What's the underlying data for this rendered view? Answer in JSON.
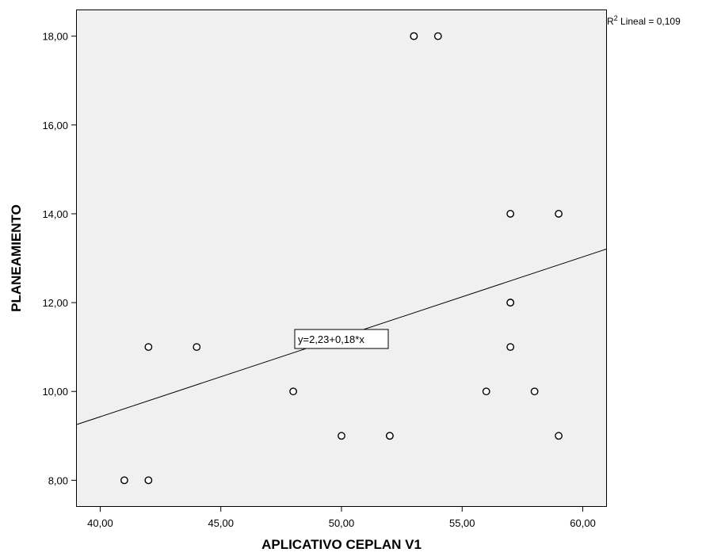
{
  "chart_data": {
    "type": "scatter",
    "xlabel": "APLICATIVO CEPLAN  V1",
    "ylabel": "PLANEAMIENTO",
    "xlim": [
      39,
      61
    ],
    "ylim": [
      7.4,
      18.6
    ],
    "xticks": [
      40,
      45,
      50,
      55,
      60
    ],
    "yticks": [
      8,
      10,
      12,
      14,
      16,
      18
    ],
    "xtick_labels": [
      "40,00",
      "45,00",
      "50,00",
      "55,00",
      "60,00"
    ],
    "ytick_labels": [
      "8,00",
      "10,00",
      "12,00",
      "14,00",
      "16,00",
      "18,00"
    ],
    "grid": false,
    "background": "#f0f0f0",
    "points": [
      {
        "x": 41,
        "y": 8
      },
      {
        "x": 42,
        "y": 8
      },
      {
        "x": 42,
        "y": 11
      },
      {
        "x": 44,
        "y": 11
      },
      {
        "x": 48,
        "y": 10
      },
      {
        "x": 50,
        "y": 9
      },
      {
        "x": 52,
        "y": 9
      },
      {
        "x": 52,
        "y": 9
      },
      {
        "x": 53,
        "y": 18
      },
      {
        "x": 53,
        "y": 18
      },
      {
        "x": 54,
        "y": 18
      },
      {
        "x": 56,
        "y": 10
      },
      {
        "x": 57,
        "y": 14
      },
      {
        "x": 57,
        "y": 12
      },
      {
        "x": 57,
        "y": 12
      },
      {
        "x": 57,
        "y": 11
      },
      {
        "x": 58,
        "y": 10
      },
      {
        "x": 59,
        "y": 14
      },
      {
        "x": 59,
        "y": 9
      }
    ],
    "fit_line": {
      "intercept": 2.23,
      "slope": 0.18,
      "equation_label": "y=2,23+0,18*x",
      "r2_prefix": "R",
      "r2_superscript": "2",
      "r2_text": " Lineal = 0,109"
    }
  }
}
